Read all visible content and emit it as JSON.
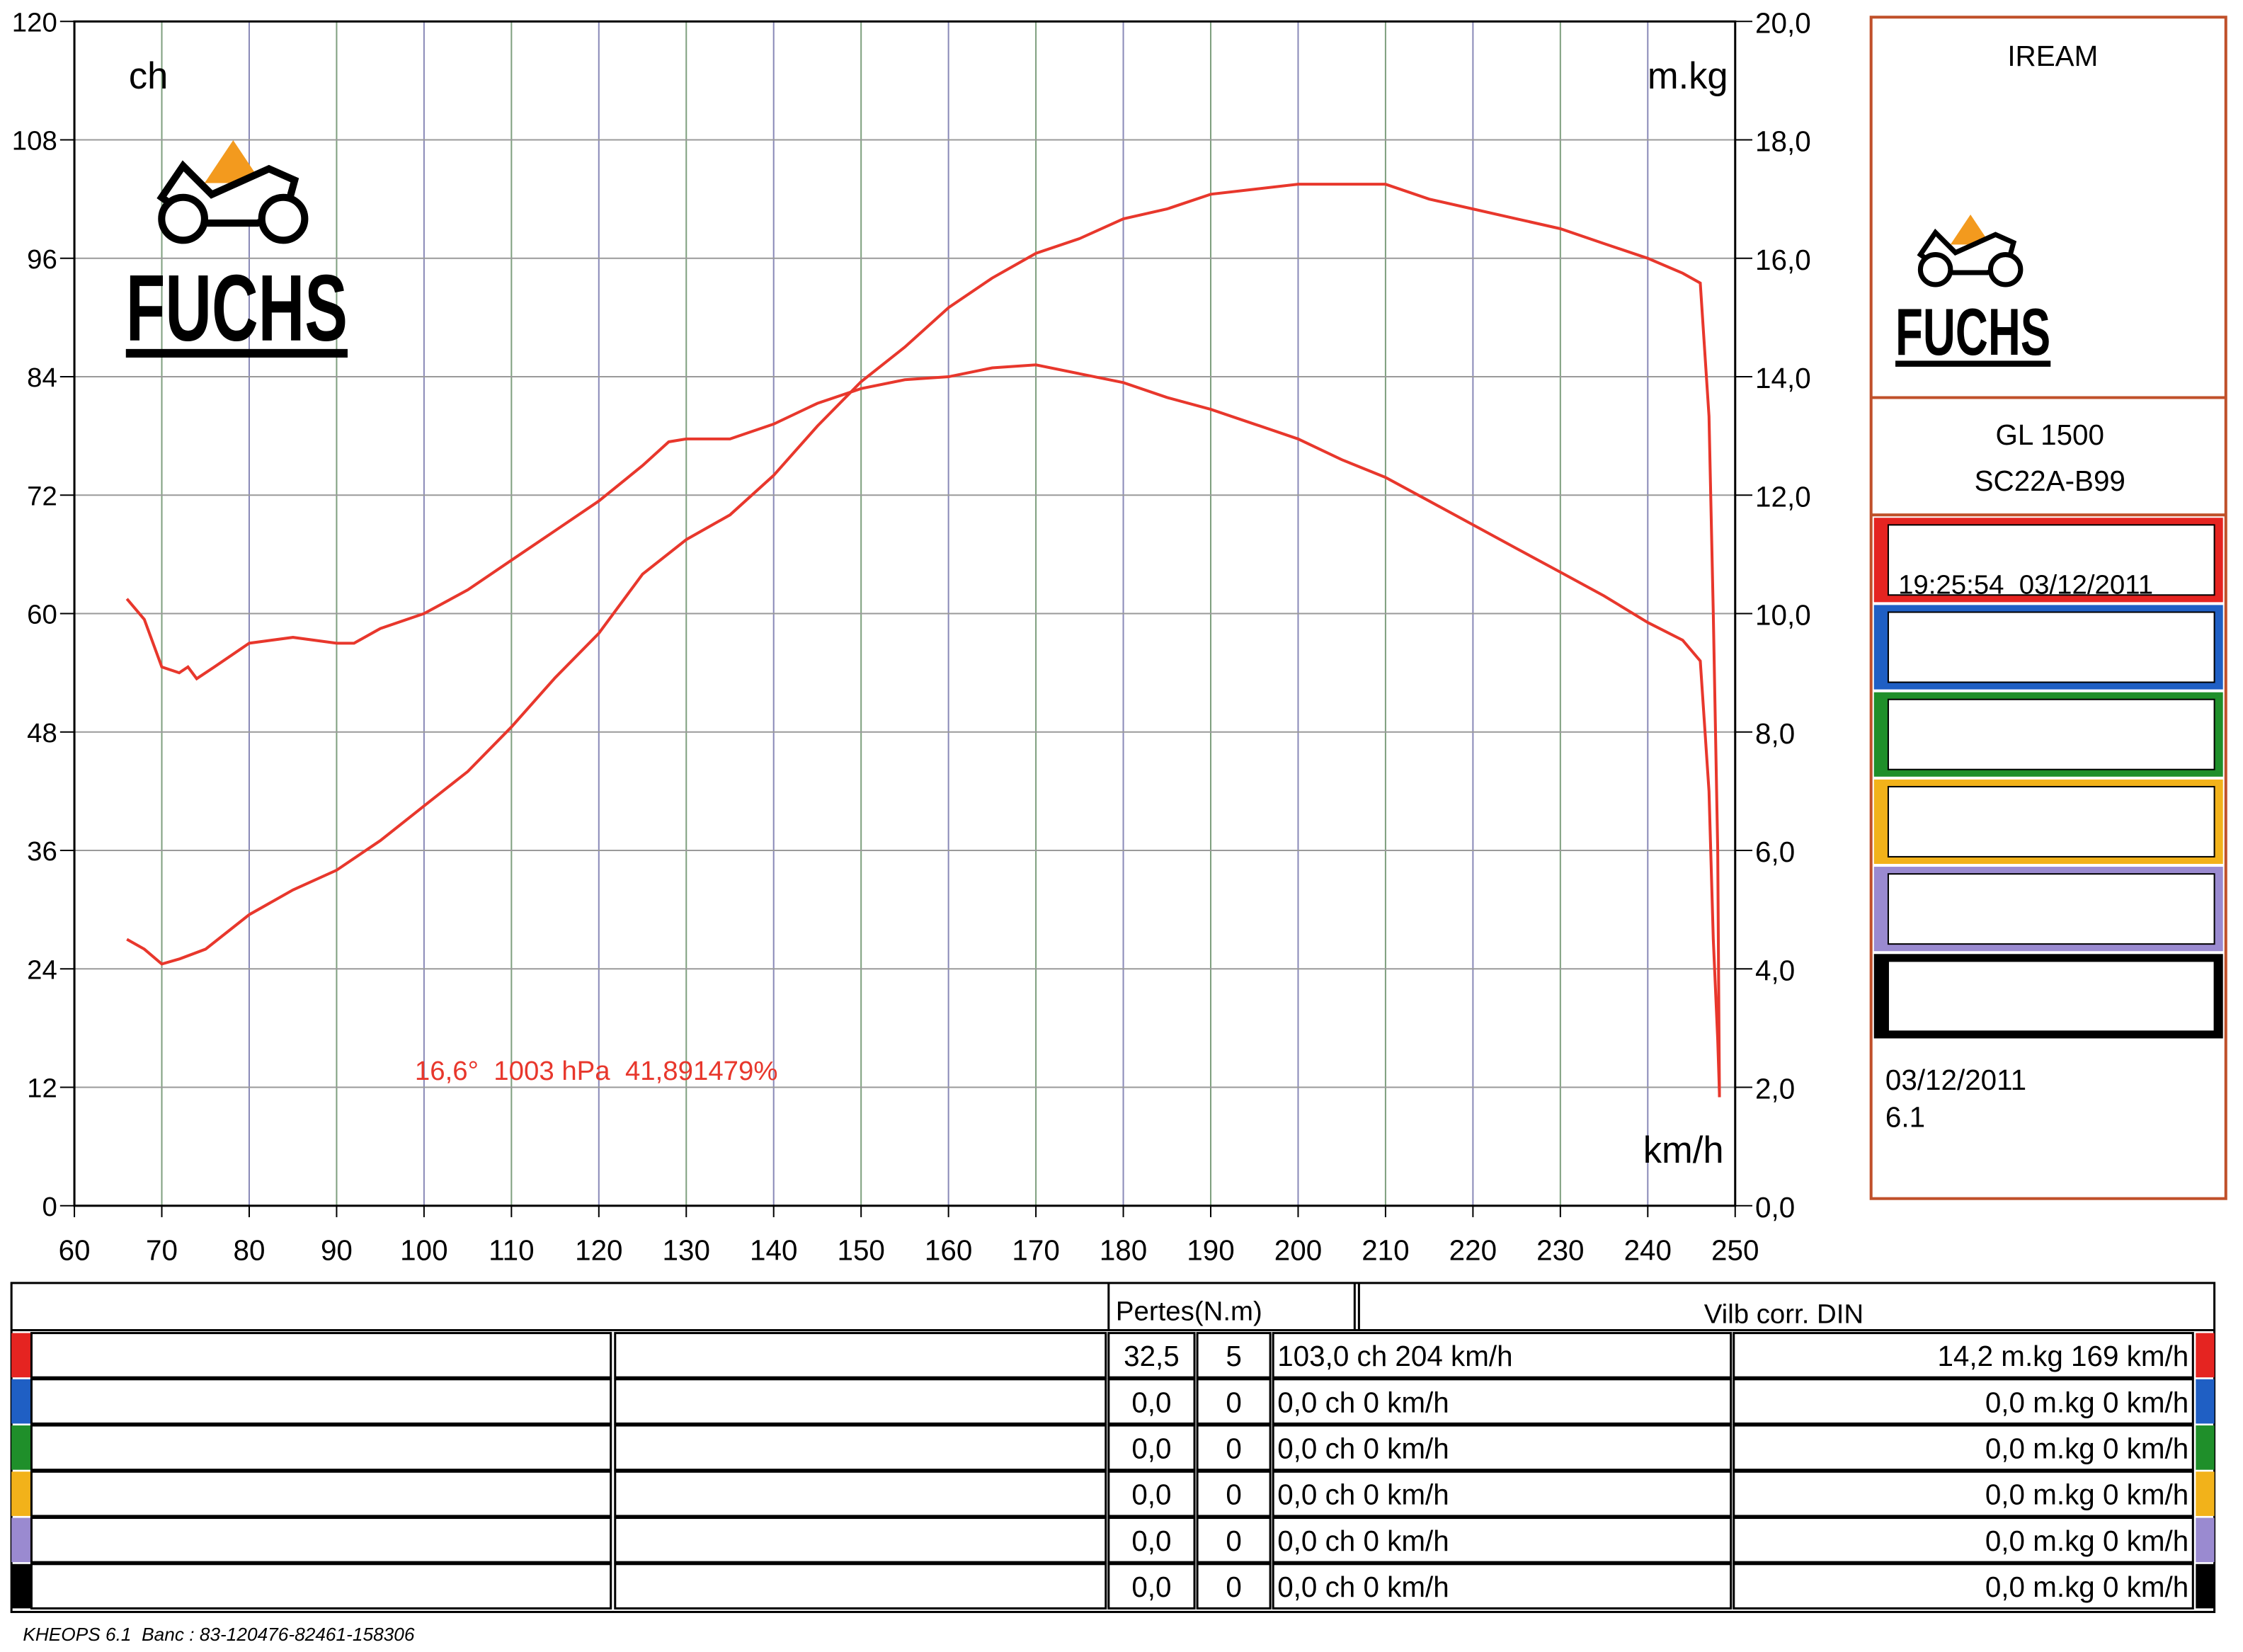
{
  "chart_data": {
    "type": "line",
    "annotation": "16,6°  1003 hPa  41,891479%",
    "ylabel": "ch",
    "y2label": "m.kg",
    "xlabel": "km/h",
    "xlim": [
      60,
      250
    ],
    "xticks": [
      60,
      70,
      80,
      90,
      100,
      110,
      120,
      130,
      140,
      150,
      160,
      170,
      180,
      190,
      200,
      210,
      220,
      230,
      240,
      250
    ],
    "ylim": [
      0,
      120
    ],
    "yticks": [
      0,
      12,
      24,
      36,
      48,
      60,
      72,
      84,
      96,
      108,
      120
    ],
    "y2lim": [
      0,
      20
    ],
    "y2ticks": [
      {
        "value": 0,
        "label": "0,0"
      },
      {
        "value": 2,
        "label": "2,0"
      },
      {
        "value": 4,
        "label": "4,0"
      },
      {
        "value": 6,
        "label": "6,0"
      },
      {
        "value": 8,
        "label": "8,0"
      },
      {
        "value": 10,
        "label": "10,0"
      },
      {
        "value": 12,
        "label": "12,0"
      },
      {
        "value": 14,
        "label": "14,0"
      },
      {
        "value": 16,
        "label": "16,0"
      },
      {
        "value": 18,
        "label": "18,0"
      },
      {
        "value": 20,
        "label": "20,0"
      }
    ],
    "grid": true,
    "series": [
      {
        "color": "#e8372c",
        "x": [
          66,
          68,
          70,
          72,
          75,
          80,
          85,
          90,
          95,
          100,
          105,
          110,
          115,
          120,
          125,
          130,
          135,
          140,
          145,
          150,
          155,
          160,
          165,
          170,
          175,
          180,
          185,
          190,
          195,
          200,
          204,
          210,
          215,
          220,
          225,
          230,
          235,
          240,
          244,
          246,
          247,
          247.5,
          248,
          248.2
        ],
        "values": [
          27,
          26,
          24.5,
          25,
          26,
          29.5,
          32,
          34,
          37,
          40.5,
          44,
          48.5,
          53.5,
          58,
          64,
          67.5,
          70,
          74,
          79,
          83.5,
          87,
          91,
          94,
          96.5,
          98,
          100,
          101,
          102.5,
          103,
          103.5,
          103.5,
          103.5,
          102,
          101,
          100,
          99,
          97.5,
          96,
          94.5,
          93.5,
          80,
          60,
          36,
          11
        ]
      },
      {
        "color": "#e8372c",
        "axis": "y2",
        "x": [
          66,
          68,
          70,
          72,
          73,
          74,
          76,
          80,
          85,
          90,
          92,
          95,
          100,
          105,
          110,
          115,
          120,
          125,
          128,
          130,
          135,
          140,
          145,
          150,
          155,
          160,
          165,
          170,
          175,
          180,
          185,
          190,
          195,
          200,
          205,
          210,
          215,
          220,
          225,
          230,
          235,
          240,
          244,
          246,
          247,
          247.5,
          248,
          248.2
        ],
        "values": [
          10.25,
          9.9,
          9.1,
          9.0,
          9.1,
          8.9,
          9.1,
          9.5,
          9.6,
          9.5,
          9.5,
          9.75,
          10.0,
          10.4,
          10.9,
          11.4,
          11.9,
          12.5,
          12.9,
          12.95,
          12.95,
          13.2,
          13.55,
          13.8,
          13.95,
          14.0,
          14.15,
          14.2,
          14.05,
          13.9,
          13.65,
          13.45,
          13.2,
          12.95,
          12.6,
          12.3,
          11.9,
          11.5,
          11.1,
          10.7,
          10.3,
          9.85,
          9.55,
          9.2,
          7.0,
          4.5,
          2.8,
          1.9
        ]
      }
    ]
  },
  "logos": [
    "FUCHS",
    "FUCHS"
  ],
  "panel": {
    "title": "IREAM",
    "model": "GL 1500",
    "code": "SC22A-B99",
    "entry": "19:25:54  03/12/2011",
    "date": "03/12/2011",
    "version": "6.1"
  },
  "table": {
    "header": [
      "Pertes(N.m)",
      "Vilb corr. DIN"
    ],
    "rows": [
      [
        "32,5",
        "5",
        "103,0 ch 204 km/h",
        "14,2 m.kg 169 km/h"
      ],
      [
        "0,0",
        "0",
        "0,0 ch 0 km/h",
        "0,0 m.kg 0 km/h"
      ],
      [
        "0,0",
        "0",
        "0,0 ch 0 km/h",
        "0,0 m.kg 0 km/h"
      ],
      [
        "0,0",
        "0",
        "0,0 ch 0 km/h",
        "0,0 m.kg 0 km/h"
      ],
      [
        "0,0",
        "0",
        "0,0 ch 0 km/h",
        "0,0 m.kg 0 km/h"
      ],
      [
        "0,0",
        "0",
        "0,0 ch 0 km/h",
        "0,0 m.kg 0 km/h"
      ]
    ]
  },
  "footer": "KHEOPS 6.1  Banc : 83-120476-82461-158306"
}
